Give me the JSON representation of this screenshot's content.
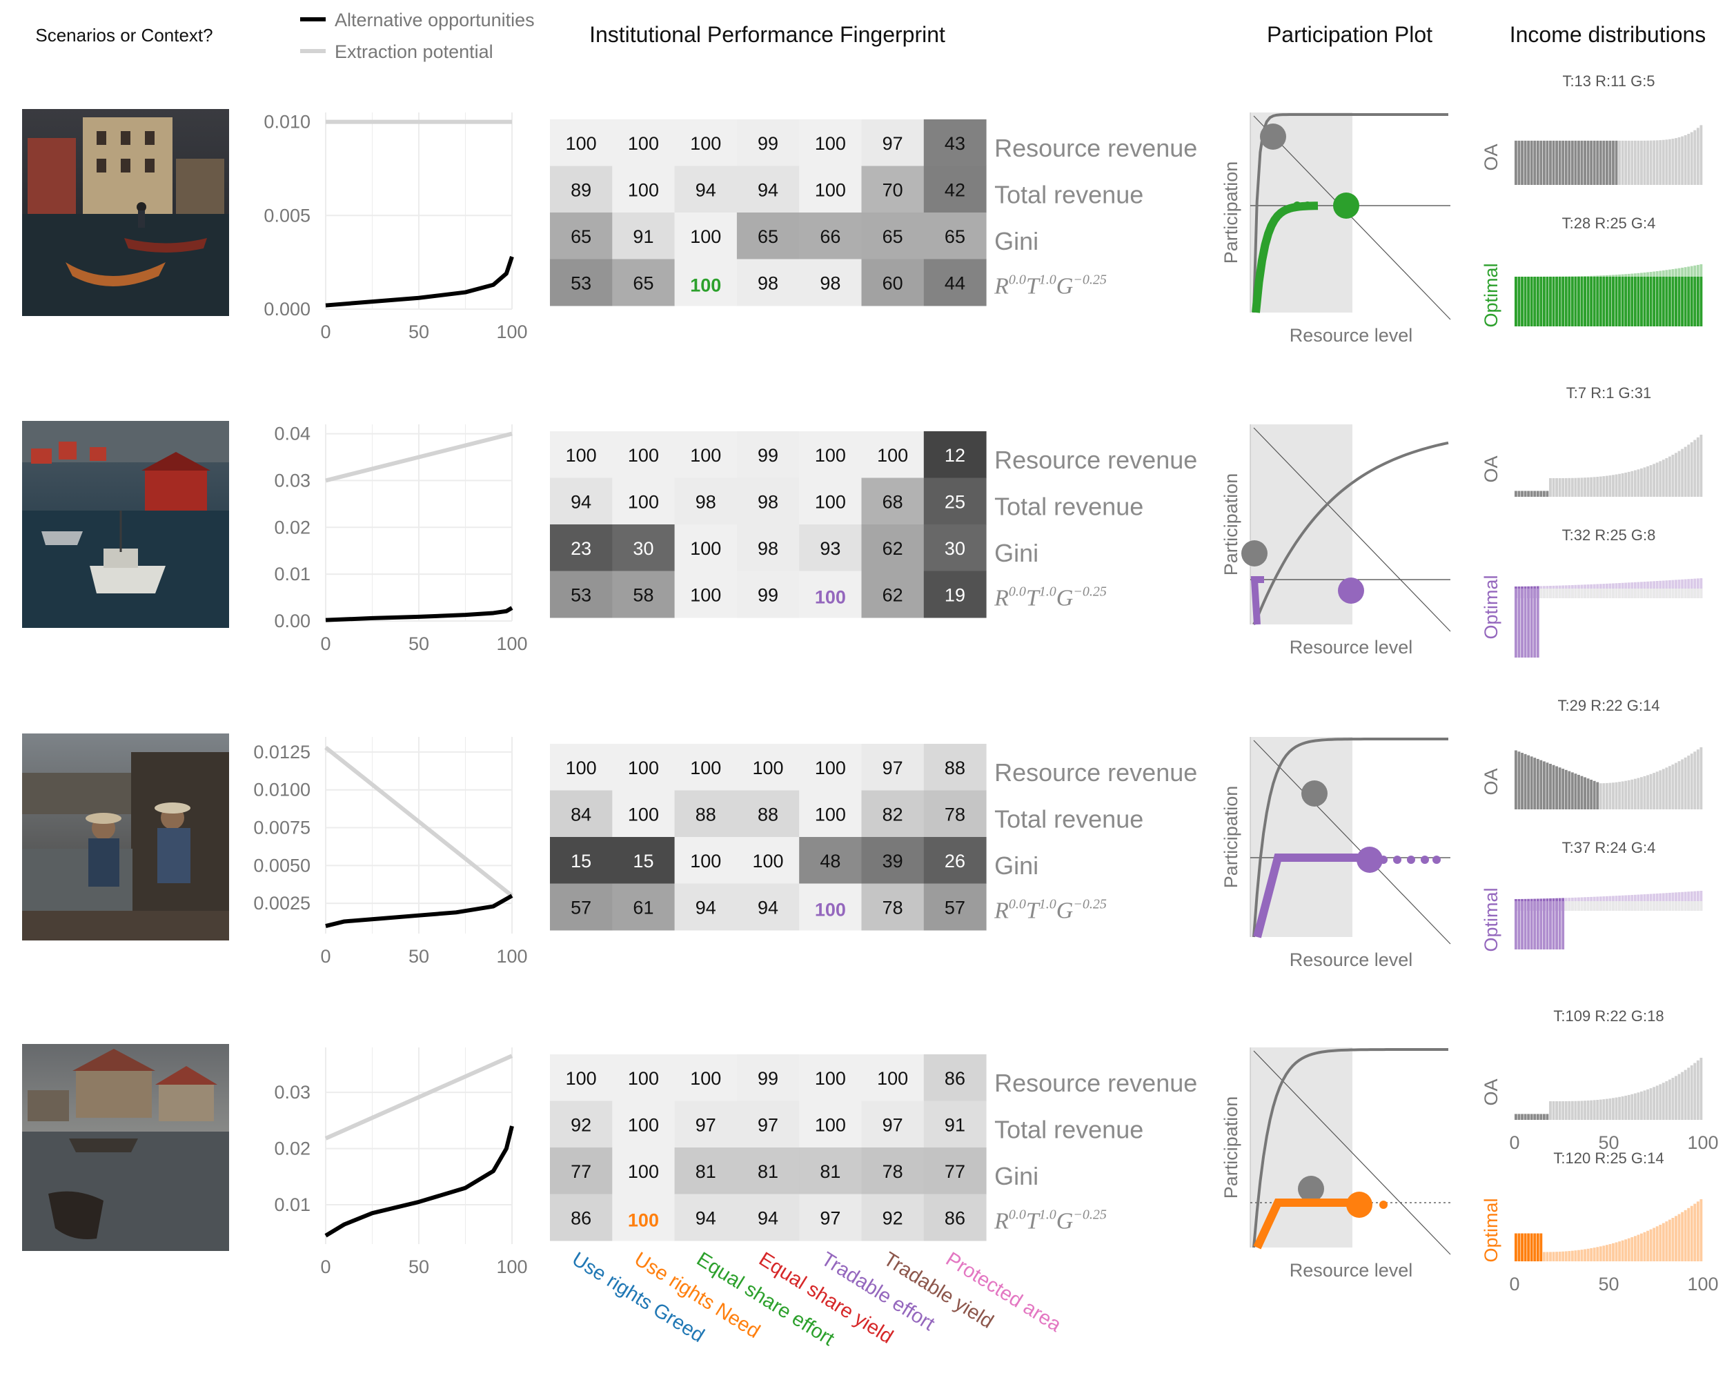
{
  "headers": {
    "scenarios": "Scenarios or Context?",
    "fingerprint": "Institutional Performance Fingerprint",
    "participation": "Participation Plot",
    "income": "Income distributions"
  },
  "legend": [
    {
      "label": "Alternative opportunities",
      "color": "#000000"
    },
    {
      "label": "Extraction potential",
      "color": "#d3d3d3"
    }
  ],
  "row_labels": [
    "Resource revenue",
    "Total revenue",
    "Gini"
  ],
  "objective_label": {
    "base1": "R",
    "exp1": "0.0",
    "base2": "T",
    "exp2": "1.0",
    "base3": "G",
    "exp3": "−0.25"
  },
  "institutions": [
    {
      "label": "Use rights Greed",
      "color": "#1f77b4"
    },
    {
      "label": "Use rights Need",
      "color": "#ff7f0e"
    },
    {
      "label": "Equal share effort",
      "color": "#2ca02c"
    },
    {
      "label": "Equal share yield",
      "color": "#d62728"
    },
    {
      "label": "Tradable effort",
      "color": "#9467bd"
    },
    {
      "label": "Tradable yield",
      "color": "#8c564b"
    },
    {
      "label": "Protected area",
      "color": "#e377c2"
    }
  ],
  "participation_axis": {
    "xlabel": "Resource level",
    "ylabel": "Participation"
  },
  "income_labels": {
    "oa": "OA",
    "optimal": "Optimal"
  },
  "scenarios": [
    {
      "image_icon": "harbor-town-photo",
      "line_chart": {
        "xlim": [
          0,
          100
        ],
        "xticks": [
          0,
          50,
          100
        ],
        "ylim": [
          0,
          0.0105
        ],
        "yticks": [
          "0.000",
          "0.005",
          "0.010"
        ],
        "ytick_values": [
          0,
          0.005,
          0.01
        ],
        "alternative_opportunities": {
          "x": [
            0,
            25,
            50,
            75,
            90,
            97,
            100
          ],
          "y": [
            0.0002,
            0.0004,
            0.0006,
            0.0009,
            0.0013,
            0.0019,
            0.0028
          ]
        },
        "extraction_potential": {
          "x": [
            0,
            100
          ],
          "y": [
            0.01,
            0.01
          ]
        }
      },
      "fingerprint": [
        [
          100,
          100,
          100,
          99,
          100,
          97,
          43
        ],
        [
          89,
          100,
          94,
          94,
          100,
          70,
          42
        ],
        [
          65,
          91,
          100,
          65,
          66,
          65,
          65
        ],
        [
          53,
          65,
          100,
          98,
          98,
          60,
          44
        ]
      ],
      "best_index": 2,
      "best_color": "#2ca02c",
      "income": {
        "oa_stats": "T:13 R:11 G:5",
        "optimal_stats": "T:28 R:25 G:4"
      }
    },
    {
      "image_icon": "fishing-port-photo",
      "line_chart": {
        "xlim": [
          0,
          100
        ],
        "xticks": [
          0,
          50,
          100
        ],
        "ylim": [
          0,
          0.042
        ],
        "yticks": [
          "0.00",
          "0.01",
          "0.02",
          "0.03",
          "0.04"
        ],
        "ytick_values": [
          0,
          0.01,
          0.02,
          0.03,
          0.04
        ],
        "alternative_opportunities": {
          "x": [
            0,
            25,
            50,
            75,
            90,
            97,
            100
          ],
          "y": [
            0.0002,
            0.0006,
            0.0009,
            0.0013,
            0.0017,
            0.0021,
            0.0028
          ]
        },
        "extraction_potential": {
          "x": [
            0,
            100
          ],
          "y": [
            0.03,
            0.04
          ]
        }
      },
      "fingerprint": [
        [
          100,
          100,
          100,
          99,
          100,
          100,
          12
        ],
        [
          94,
          100,
          98,
          98,
          100,
          68,
          25
        ],
        [
          23,
          30,
          100,
          98,
          93,
          62,
          30
        ],
        [
          53,
          58,
          100,
          99,
          100,
          62,
          19
        ]
      ],
      "best_index": 4,
      "best_color": "#9467bd",
      "income": {
        "oa_stats": "T:7 R:1 G:31",
        "optimal_stats": "T:32 R:25 G:8"
      }
    },
    {
      "image_icon": "fishermen-dock-photo",
      "line_chart": {
        "xlim": [
          0,
          100
        ],
        "xticks": [
          0,
          50,
          100
        ],
        "ylim": [
          0.0005,
          0.0135
        ],
        "yticks": [
          "0.0025",
          "0.0050",
          "0.0075",
          "0.0100",
          "0.0125"
        ],
        "ytick_values": [
          0.0025,
          0.005,
          0.0075,
          0.01,
          0.0125
        ],
        "alternative_opportunities": {
          "x": [
            0,
            10,
            30,
            50,
            70,
            90,
            100
          ],
          "y": [
            0.001,
            0.0013,
            0.0015,
            0.0017,
            0.0019,
            0.0023,
            0.003
          ]
        },
        "extraction_potential": {
          "x": [
            0,
            100
          ],
          "y": [
            0.0128,
            0.003
          ]
        }
      },
      "fingerprint": [
        [
          100,
          100,
          100,
          100,
          100,
          97,
          88
        ],
        [
          84,
          100,
          88,
          88,
          100,
          82,
          78
        ],
        [
          15,
          15,
          100,
          100,
          48,
          39,
          26
        ],
        [
          57,
          61,
          94,
          94,
          100,
          78,
          57
        ]
      ],
      "best_index": 4,
      "best_color": "#9467bd",
      "income": {
        "oa_stats": "T:29 R:22 G:14",
        "optimal_stats": "T:37 R:24 G:4"
      }
    },
    {
      "image_icon": "lake-village-photo",
      "line_chart": {
        "xlim": [
          0,
          100
        ],
        "xticks": [
          0,
          50,
          100
        ],
        "ylim": [
          0.003,
          0.038
        ],
        "yticks": [
          "0.01",
          "0.02",
          "0.03"
        ],
        "ytick_values": [
          0.01,
          0.02,
          0.03
        ],
        "alternative_opportunities": {
          "x": [
            0,
            10,
            25,
            50,
            75,
            90,
            97,
            100
          ],
          "y": [
            0.0045,
            0.0065,
            0.0085,
            0.0105,
            0.013,
            0.016,
            0.02,
            0.024
          ]
        },
        "extraction_potential": {
          "x": [
            0,
            100
          ],
          "y": [
            0.0218,
            0.0365
          ]
        }
      },
      "fingerprint": [
        [
          100,
          100,
          100,
          99,
          100,
          100,
          86
        ],
        [
          92,
          100,
          97,
          97,
          100,
          97,
          91
        ],
        [
          77,
          100,
          81,
          81,
          81,
          78,
          77
        ],
        [
          86,
          100,
          94,
          94,
          97,
          92,
          86
        ]
      ],
      "best_index": 1,
      "best_color": "#ff7f0e",
      "income": {
        "oa_stats": "T:109 R:22 G:18",
        "optimal_stats": "T:120 R:25 G:14"
      },
      "income_xticks": [
        0,
        50,
        100
      ]
    }
  ]
}
